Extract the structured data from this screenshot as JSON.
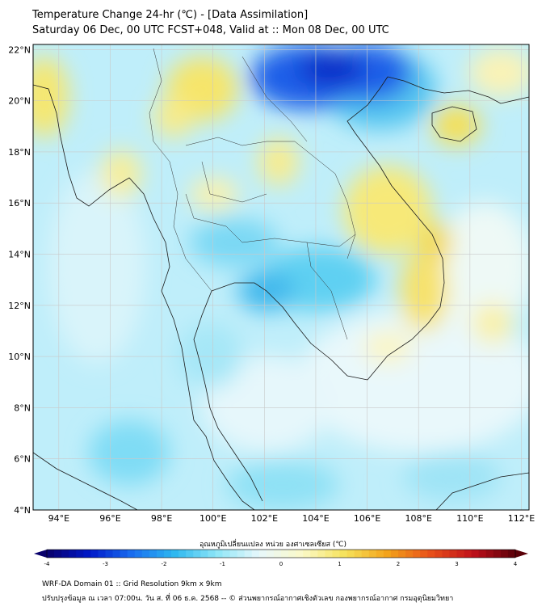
{
  "header": {
    "title_line1": "Temperature Change 24-hr (℃) - [Data Assimilation]",
    "title_line2": "Saturday 06 Dec, 00 UTC FCST+048, Valid at :: Mon 08 Dec, 00 UTC"
  },
  "map": {
    "lat_ticks": [
      "22°N",
      "20°N",
      "18°N",
      "16°N",
      "14°N",
      "12°N",
      "10°N",
      "8°N",
      "6°N",
      "4°N"
    ],
    "lon_ticks": [
      "94°E",
      "96°E",
      "98°E",
      "100°E",
      "102°E",
      "104°E",
      "106°E",
      "108°E",
      "110°E",
      "112°E"
    ],
    "lat_range": [
      4,
      22.2
    ],
    "lon_range": [
      93,
      112.3
    ]
  },
  "colorbar": {
    "label": "อุณหภูมิเปลี่ยนแปลง หน่วย องศาเซลเซียส (℃)",
    "ticks": [
      "-4",
      "-3",
      "-2",
      "-1",
      "0",
      "1",
      "2",
      "3",
      "4"
    ],
    "range": [
      -4,
      4
    ],
    "colors": [
      "#08006b",
      "#0018c8",
      "#1a6ef0",
      "#2eb8f0",
      "#8fe6f7",
      "#e8f8fb",
      "#fbf9c8",
      "#f6e25a",
      "#f3a31a",
      "#e8501a",
      "#c0101a",
      "#5a0008"
    ]
  },
  "footer": {
    "line1": "WRF-DA Domain 01 :: Grid Resolution 9km x 9km",
    "line2": "ปรับปรุงข้อมูล ณ เวลา 07:00น. วัน ส. ที่ 06 ธ.ค. 2568 -- © ส่วนพยากรณ์อากาศเชิงตัวเลข กองพยากรณ์อากาศ กรมอุตุนิยมวิทยา"
  }
}
